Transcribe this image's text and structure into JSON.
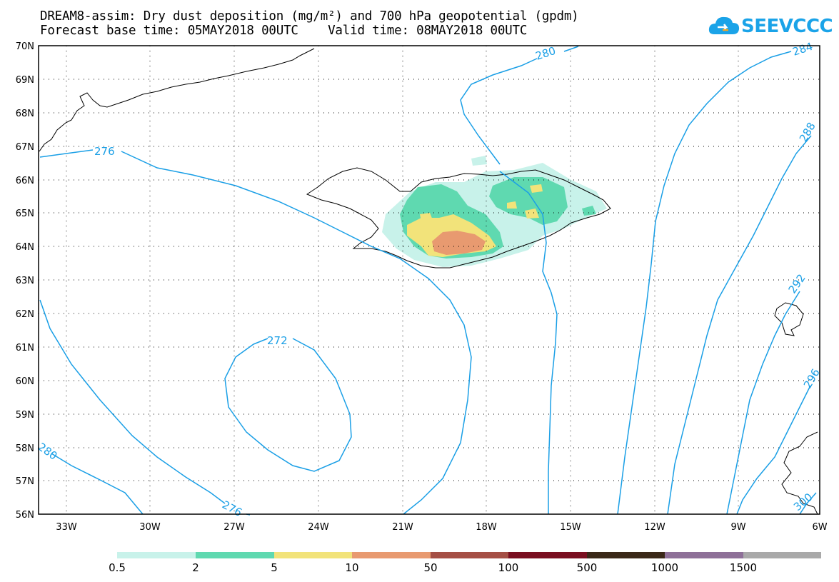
{
  "title": {
    "line1": "DREAM8-assim: Dry dust deposition (mg/m²) and 700 hPa geopotential (gpdm)",
    "line2": "Forecast base time: 05MAY2018 00UTC    Valid time: 08MAY2018 00UTC"
  },
  "logo": {
    "text": "SEEVCCC",
    "icon": "cloud-icon",
    "color": "#1aa3e8"
  },
  "map": {
    "lat_labels": [
      "70N",
      "69N",
      "68N",
      "67N",
      "66N",
      "65N",
      "64N",
      "63N",
      "62N",
      "61N",
      "60N",
      "59N",
      "58N",
      "57N",
      "56N"
    ],
    "lon_labels": [
      "33W",
      "30W",
      "27W",
      "24W",
      "21W",
      "18W",
      "15W",
      "12W",
      "9W",
      "6W"
    ],
    "contour_color": "#1a9fe6",
    "contour_labels": [
      "280",
      "284",
      "276",
      "272",
      "276",
      "280",
      "288",
      "292",
      "296",
      "300"
    ]
  },
  "legend": {
    "labels": [
      "0.5",
      "2",
      "5",
      "10",
      "50",
      "100",
      "500",
      "1000",
      "1500"
    ],
    "colors": [
      "#c8f2ea",
      "#5fd9b0",
      "#f2e37a",
      "#e89a70",
      "#a54f45",
      "#7a0f20",
      "#3a2818",
      "#8e7098",
      "#a9a9a9"
    ]
  }
}
